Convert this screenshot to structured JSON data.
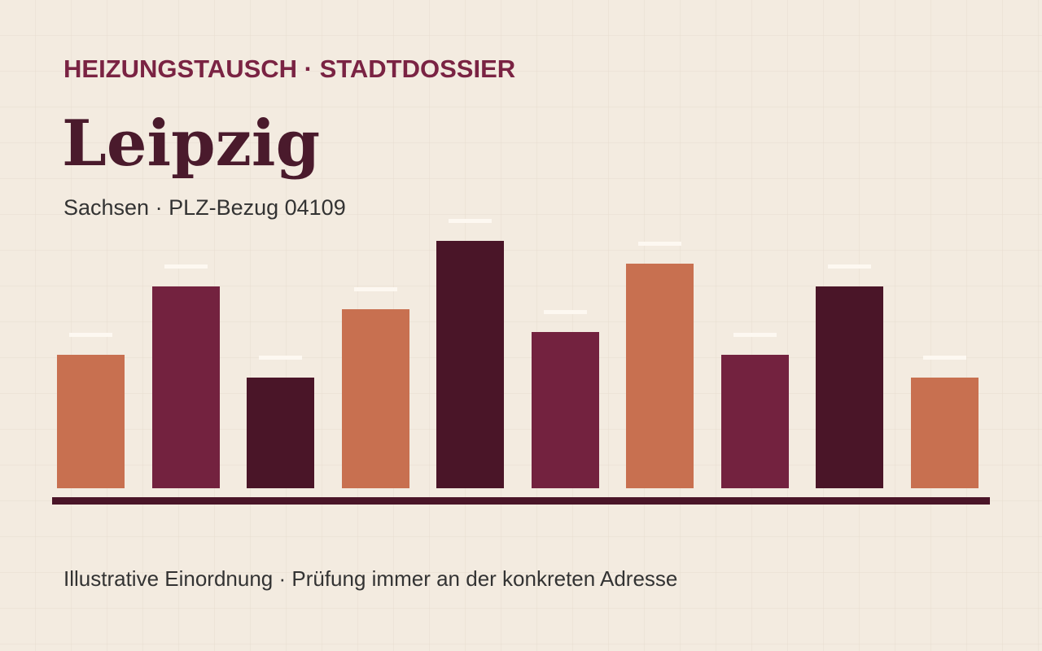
{
  "header": {
    "kicker": "HEIZUNGSTAUSCH · STADTDOSSIER",
    "title": "Leipzig",
    "subtitle": "Sachsen · PLZ-Bezug 04109"
  },
  "footer": {
    "note": "Illustrative Einordnung · Prüfung immer an der konkreten Adresse"
  }
}
